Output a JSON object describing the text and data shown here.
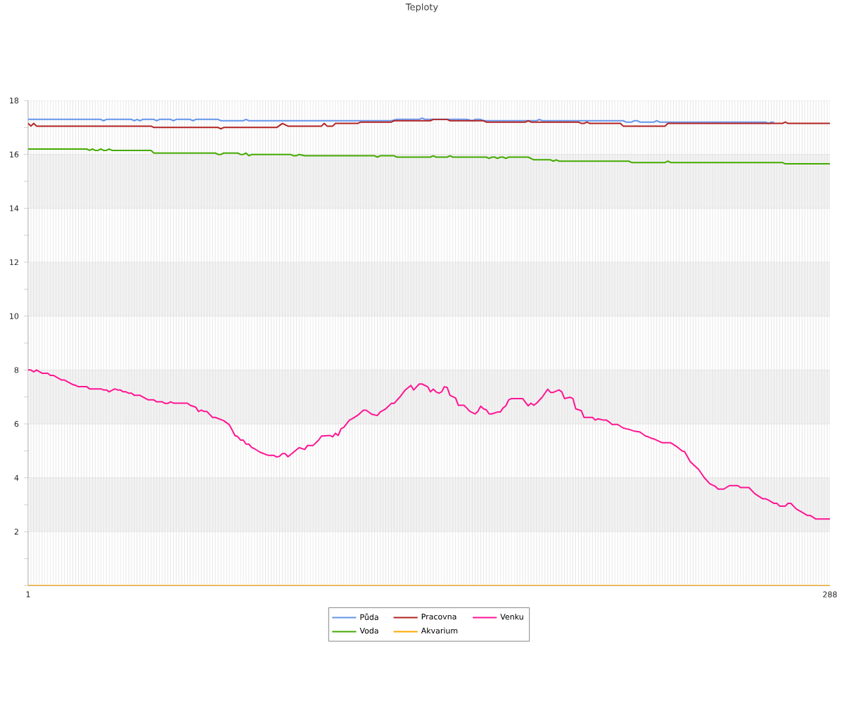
{
  "chart_data": {
    "type": "line",
    "title": "Teploty",
    "xlim": [
      1,
      288
    ],
    "xticks": [
      1,
      {
        "value": 2,
        "label": null
      },
      {
        "value": 3,
        "label": null
      },
      {
        "value": 4,
        "label": null
      },
      {
        "value": 5,
        "label": null
      },
      {
        "value": 6,
        "label": null
      },
      {
        "value": 7,
        "label": null
      },
      {
        "value": 8,
        "label": null
      },
      {
        "value": 9,
        "label": null
      },
      {
        "value": 10,
        "label": null
      },
      {
        "value": 11,
        "label": null
      },
      {
        "value": 12,
        "label": null
      },
      {
        "value": 13,
        "label": null
      },
      {
        "value": 14,
        "label": null
      },
      {
        "value": 15,
        "label": null
      },
      {
        "value": 16,
        "label": null
      },
      {
        "value": 17,
        "label": null
      },
      {
        "value": 18,
        "label": null
      },
      {
        "value": 19,
        "label": null
      },
      {
        "value": 20,
        "label": null
      },
      {
        "value": 21,
        "label": null
      },
      {
        "value": 22,
        "label": null
      },
      {
        "value": 23,
        "label": null
      },
      {
        "value": 24,
        "label": null
      },
      {
        "value": 25,
        "label": null
      },
      {
        "value": 26,
        "label": null
      },
      {
        "value": 27,
        "label": null
      },
      {
        "value": 28,
        "label": null
      },
      {
        "value": 29,
        "label": null
      },
      {
        "value": 30,
        "label": null
      },
      {
        "value": 31,
        "label": null
      },
      {
        "value": 32,
        "label": null
      },
      {
        "value": 33,
        "label": null
      },
      {
        "value": 34,
        "label": null
      },
      {
        "value": 35,
        "label": null
      },
      {
        "value": 36,
        "label": null
      },
      {
        "value": 37,
        "label": null
      },
      {
        "value": 38,
        "label": null
      },
      {
        "value": 39,
        "label": null
      },
      {
        "value": 40,
        "label": null
      },
      {
        "value": 41,
        "label": null
      },
      {
        "value": 42,
        "label": null
      },
      {
        "value": 43,
        "label": null
      },
      {
        "value": 44,
        "label": null
      },
      {
        "value": 45,
        "label": null
      },
      {
        "value": 46,
        "label": null
      },
      {
        "value": 47,
        "label": null
      },
      {
        "value": 48,
        "label": null
      },
      {
        "value": 49,
        "label": null
      },
      {
        "value": 50,
        "label": null
      },
      {
        "value": 51,
        "label": null
      },
      {
        "value": 52,
        "label": null
      },
      {
        "value": 53,
        "label": null
      },
      {
        "value": 54,
        "label": null
      },
      {
        "value": 55,
        "label": null
      },
      {
        "value": 56,
        "label": null
      },
      {
        "value": 57,
        "label": null
      },
      {
        "value": 58,
        "label": null
      },
      {
        "value": 59,
        "label": null
      },
      {
        "value": 60,
        "label": null
      },
      {
        "value": 61,
        "label": null
      },
      {
        "value": 62,
        "label": null
      },
      {
        "value": 63,
        "label": null
      },
      {
        "value": 64,
        "label": null
      },
      {
        "value": 65,
        "label": null
      },
      {
        "value": 66,
        "label": null
      },
      {
        "value": 67,
        "label": null
      },
      {
        "value": 68,
        "label": null
      },
      {
        "value": 69,
        "label": null
      },
      {
        "value": 70,
        "label": null
      },
      {
        "value": 71,
        "label": null
      },
      {
        "value": 72,
        "label": null
      },
      {
        "value": 73,
        "label": null
      },
      {
        "value": 74,
        "label": null
      },
      {
        "value": 75,
        "label": null
      },
      {
        "value": 76,
        "label": null
      },
      {
        "value": 77,
        "label": null
      },
      {
        "value": 78,
        "label": null
      },
      {
        "value": 79,
        "label": null
      },
      {
        "value": 80,
        "label": null
      },
      {
        "value": 81,
        "label": null
      },
      {
        "value": 82,
        "label": null
      },
      {
        "value": 83,
        "label": null
      },
      {
        "value": 84,
        "label": null
      },
      {
        "value": 85,
        "label": null
      },
      {
        "value": 86,
        "label": null
      },
      {
        "value": 87,
        "label": null
      },
      {
        "value": 88,
        "label": null
      },
      {
        "value": 89,
        "label": null
      },
      {
        "value": 90,
        "label": null
      },
      {
        "value": 91,
        "label": null
      },
      {
        "value": 92,
        "label": null
      },
      {
        "value": 93,
        "label": null
      },
      {
        "value": 94,
        "label": null
      },
      {
        "value": 95,
        "label": null
      },
      {
        "value": 96,
        "label": null
      },
      {
        "value": 97,
        "label": null
      },
      {
        "value": 98,
        "label": null
      },
      {
        "value": 99,
        "label": null
      },
      {
        "value": 100,
        "label": null
      },
      {
        "value": 101,
        "label": null
      },
      {
        "value": 102,
        "label": null
      },
      {
        "value": 103,
        "label": null
      },
      {
        "value": 104,
        "label": null
      },
      {
        "value": 105,
        "label": null
      },
      {
        "value": 106,
        "label": null
      },
      {
        "value": 107,
        "label": null
      },
      {
        "value": 108,
        "label": null
      },
      {
        "value": 109,
        "label": null
      },
      {
        "value": 110,
        "label": null
      },
      {
        "value": 111,
        "label": null
      },
      {
        "value": 112,
        "label": null
      },
      {
        "value": 113,
        "label": null
      },
      {
        "value": 114,
        "label": null
      },
      {
        "value": 115,
        "label": null
      },
      {
        "value": 116,
        "label": null
      },
      {
        "value": 117,
        "label": null
      },
      {
        "value": 118,
        "label": null
      },
      {
        "value": 119,
        "label": null
      },
      {
        "value": 120,
        "label": null
      },
      {
        "value": 121,
        "label": null
      },
      {
        "value": 122,
        "label": null
      },
      {
        "value": 123,
        "label": null
      },
      {
        "value": 124,
        "label": null
      },
      {
        "value": 125,
        "label": null
      },
      {
        "value": 126,
        "label": null
      },
      {
        "value": 127,
        "label": null
      },
      {
        "value": 128,
        "label": null
      },
      {
        "value": 129,
        "label": null
      },
      {
        "value": 130,
        "label": null
      },
      {
        "value": 131,
        "label": null
      },
      {
        "value": 132,
        "label": null
      },
      {
        "value": 133,
        "label": null
      },
      {
        "value": 134,
        "label": null
      },
      {
        "value": 135,
        "label": null
      },
      {
        "value": 136,
        "label": null
      },
      {
        "value": 137,
        "label": null
      },
      {
        "value": 138,
        "label": null
      },
      {
        "value": 139,
        "label": null
      },
      {
        "value": 140,
        "label": null
      },
      {
        "value": 141,
        "label": null
      },
      {
        "value": 142,
        "label": null
      },
      {
        "value": 143,
        "label": null
      },
      {
        "value": 144,
        "label": null
      },
      {
        "value": 145,
        "label": null
      },
      {
        "value": 146,
        "label": null
      },
      {
        "value": 147,
        "label": null
      },
      {
        "value": 148,
        "label": null
      },
      {
        "value": 149,
        "label": null
      },
      {
        "value": 150,
        "label": null
      },
      {
        "value": 151,
        "label": null
      },
      {
        "value": 152,
        "label": null
      },
      {
        "value": 153,
        "label": null
      },
      {
        "value": 154,
        "label": null
      },
      {
        "value": 155,
        "label": null
      },
      {
        "value": 156,
        "label": null
      },
      {
        "value": 157,
        "label": null
      },
      {
        "value": 158,
        "label": null
      },
      {
        "value": 159,
        "label": null
      },
      {
        "value": 160,
        "label": null
      },
      {
        "value": 161,
        "label": null
      },
      {
        "value": 162,
        "label": null
      },
      {
        "value": 163,
        "label": null
      },
      {
        "value": 164,
        "label": null
      },
      {
        "value": 165,
        "label": null
      },
      {
        "value": 166,
        "label": null
      },
      {
        "value": 167,
        "label": null
      },
      {
        "value": 168,
        "label": null
      },
      {
        "value": 169,
        "label": null
      },
      {
        "value": 170,
        "label": null
      },
      {
        "value": 171,
        "label": null
      },
      {
        "value": 172,
        "label": null
      },
      {
        "value": 173,
        "label": null
      },
      {
        "value": 174,
        "label": null
      },
      {
        "value": 175,
        "label": null
      },
      {
        "value": 176,
        "label": null
      },
      {
        "value": 177,
        "label": null
      },
      {
        "value": 178,
        "label": null
      },
      {
        "value": 179,
        "label": null
      },
      {
        "value": 180,
        "label": null
      },
      {
        "value": 181,
        "label": null
      },
      {
        "value": 182,
        "label": null
      },
      {
        "value": 183,
        "label": null
      },
      {
        "value": 184,
        "label": null
      },
      {
        "value": 185,
        "label": null
      },
      {
        "value": 186,
        "label": null
      },
      {
        "value": 187,
        "label": null
      },
      {
        "value": 188,
        "label": null
      },
      {
        "value": 189,
        "label": null
      },
      {
        "value": 190,
        "label": null
      },
      {
        "value": 191,
        "label": null
      },
      {
        "value": 192,
        "label": null
      },
      {
        "value": 193,
        "label": null
      },
      {
        "value": 194,
        "label": null
      },
      {
        "value": 195,
        "label": null
      },
      {
        "value": 196,
        "label": null
      },
      {
        "value": 197,
        "label": null
      },
      {
        "value": 198,
        "label": null
      },
      {
        "value": 199,
        "label": null
      },
      {
        "value": 200,
        "label": null
      },
      {
        "value": 201,
        "label": null
      },
      {
        "value": 202,
        "label": null
      },
      {
        "value": 203,
        "label": null
      },
      {
        "value": 204,
        "label": null
      },
      {
        "value": 205,
        "label": null
      },
      {
        "value": 206,
        "label": null
      },
      {
        "value": 207,
        "label": null
      },
      {
        "value": 208,
        "label": null
      },
      {
        "value": 209,
        "label": null
      },
      {
        "value": 210,
        "label": null
      },
      {
        "value": 211,
        "label": null
      },
      {
        "value": 212,
        "label": null
      },
      {
        "value": 213,
        "label": null
      },
      {
        "value": 214,
        "label": null
      },
      {
        "value": 215,
        "label": null
      },
      {
        "value": 216,
        "label": null
      },
      {
        "value": 217,
        "label": null
      },
      {
        "value": 218,
        "label": null
      },
      {
        "value": 219,
        "label": null
      },
      {
        "value": 220,
        "label": null
      },
      {
        "value": 221,
        "label": null
      },
      {
        "value": 222,
        "label": null
      },
      {
        "value": 223,
        "label": null
      },
      {
        "value": 224,
        "label": null
      },
      {
        "value": 225,
        "label": null
      },
      {
        "value": 226,
        "label": null
      },
      {
        "value": 227,
        "label": null
      },
      {
        "value": 228,
        "label": null
      },
      {
        "value": 229,
        "label": null
      },
      {
        "value": 230,
        "label": null
      },
      {
        "value": 231,
        "label": null
      },
      {
        "value": 232,
        "label": null
      },
      {
        "value": 233,
        "label": null
      },
      {
        "value": 234,
        "label": null
      },
      {
        "value": 235,
        "label": null
      },
      {
        "value": 236,
        "label": null
      },
      {
        "value": 237,
        "label": null
      },
      {
        "value": 238,
        "label": null
      },
      {
        "value": 239,
        "label": null
      },
      {
        "value": 240,
        "label": null
      },
      {
        "value": 241,
        "label": null
      },
      {
        "value": 242,
        "label": null
      },
      {
        "value": 243,
        "label": null
      },
      {
        "value": 244,
        "label": null
      },
      {
        "value": 245,
        "label": null
      },
      {
        "value": 246,
        "label": null
      },
      {
        "value": 247,
        "label": null
      },
      {
        "value": 248,
        "label": null
      },
      {
        "value": 249,
        "label": null
      },
      {
        "value": 250,
        "label": null
      },
      {
        "value": 251,
        "label": null
      },
      {
        "value": 252,
        "label": null
      },
      {
        "value": 253,
        "label": null
      },
      {
        "value": 254,
        "label": null
      },
      {
        "value": 255,
        "label": null
      },
      {
        "value": 256,
        "label": null
      },
      {
        "value": 257,
        "label": null
      },
      {
        "value": 258,
        "label": null
      },
      {
        "value": 259,
        "label": null
      },
      {
        "value": 260,
        "label": null
      },
      {
        "value": 261,
        "label": null
      },
      {
        "value": 262,
        "label": null
      },
      {
        "value": 263,
        "label": null
      },
      {
        "value": 264,
        "label": null
      },
      {
        "value": 265,
        "label": null
      },
      {
        "value": 266,
        "label": null
      },
      {
        "value": 267,
        "label": null
      },
      {
        "value": 268,
        "label": null
      },
      {
        "value": 269,
        "label": null
      },
      {
        "value": 270,
        "label": null
      },
      {
        "value": 271,
        "label": null
      },
      {
        "value": 272,
        "label": null
      },
      {
        "value": 273,
        "label": null
      },
      {
        "value": 274,
        "label": null
      },
      {
        "value": 275,
        "label": null
      },
      {
        "value": 276,
        "label": null
      },
      {
        "value": 277,
        "label": null
      },
      {
        "value": 278,
        "label": null
      },
      {
        "value": 279,
        "label": null
      },
      {
        "value": 280,
        "label": null
      },
      {
        "value": 281,
        "label": null
      },
      {
        "value": 282,
        "label": null
      },
      {
        "value": 283,
        "label": null
      },
      {
        "value": 284,
        "label": null
      },
      {
        "value": 285,
        "label": null
      },
      {
        "value": 286,
        "label": null
      },
      {
        "value": 287,
        "label": null
      },
      288
    ],
    "ylim": [
      0,
      18
    ],
    "yticks": [
      {
        "value": 0,
        "label": null
      },
      {
        "value": 1,
        "label": null
      },
      2,
      {
        "value": 3,
        "label": null
      },
      4,
      {
        "value": 5,
        "label": null
      },
      6,
      {
        "value": 7,
        "label": null
      },
      8,
      {
        "value": 9,
        "label": null
      },
      10,
      {
        "value": 11,
        "label": null
      },
      12,
      {
        "value": 13,
        "label": null
      },
      14,
      {
        "value": 15,
        "label": null
      },
      16,
      {
        "value": 17,
        "label": null
      },
      18
    ],
    "grid": true,
    "legend": "bottom",
    "line_style": "solid",
    "bands": [
      {
        "axis": "y",
        "from": 2,
        "to": 4,
        "color": "#f2f2f2"
      },
      {
        "axis": "y",
        "from": 6,
        "to": 8,
        "color": "#f2f2f2"
      },
      {
        "axis": "y",
        "from": 10,
        "to": 12,
        "color": "#f2f2f2"
      },
      {
        "axis": "y",
        "from": 14,
        "to": 16,
        "color": "#f2f2f2"
      }
    ],
    "series": [
      {
        "name": "Půda",
        "color": "#6495ed",
        "x": [
          1,
          27,
          28,
          29,
          38,
          39,
          40,
          41,
          42,
          46,
          47,
          48,
          52,
          53,
          54,
          55,
          59,
          60,
          61,
          69,
          70,
          78,
          79,
          80,
          131,
          133,
          141,
          142,
          143,
          158,
          160,
          161,
          163,
          164,
          183,
          184,
          185,
          214,
          215,
          217,
          218,
          219,
          220,
          225,
          226,
          227,
          265,
          266,
          267,
          268
        ],
        "values": [
          17.3,
          17.3,
          17.25,
          17.3,
          17.3,
          17.25,
          17.3,
          17.25,
          17.3,
          17.3,
          17.25,
          17.3,
          17.3,
          17.25,
          17.3,
          17.3,
          17.3,
          17.25,
          17.3,
          17.3,
          17.25,
          17.25,
          17.3,
          17.25,
          17.25,
          17.3,
          17.3,
          17.35,
          17.3,
          17.3,
          17.25,
          17.3,
          17.3,
          17.25,
          17.25,
          17.3,
          17.25,
          17.25,
          17.2,
          17.2,
          17.25,
          17.25,
          17.2,
          17.2,
          17.25,
          17.2,
          17.2,
          17.15,
          17.2,
          17.2
        ]
      },
      {
        "name": "Pracovna",
        "color": "#b22222",
        "x": [
          1,
          2,
          3,
          4,
          45,
          46,
          69,
          70,
          71,
          90,
          92,
          94,
          106,
          107,
          108,
          110,
          111,
          119,
          120,
          131,
          132,
          145,
          146,
          151,
          152,
          164,
          165,
          179,
          180,
          181,
          198,
          199,
          200,
          201,
          202,
          213,
          214,
          229,
          230,
          271,
          272,
          273,
          288
        ],
        "values": [
          17.15,
          17.05,
          17.15,
          17.05,
          17.05,
          17.0,
          17.0,
          16.95,
          17.0,
          17.0,
          17.15,
          17.05,
          17.05,
          17.15,
          17.05,
          17.05,
          17.15,
          17.15,
          17.2,
          17.2,
          17.25,
          17.25,
          17.3,
          17.3,
          17.25,
          17.25,
          17.2,
          17.2,
          17.25,
          17.2,
          17.2,
          17.15,
          17.15,
          17.2,
          17.15,
          17.15,
          17.05,
          17.05,
          17.15,
          17.15,
          17.2,
          17.15,
          17.15
        ]
      },
      {
        "name": "Venku",
        "color": "#ff1493",
        "x": [
          1,
          2,
          3,
          4,
          6,
          8,
          9,
          10,
          13,
          14,
          17,
          18,
          19,
          22,
          23,
          27,
          28,
          29,
          30,
          32,
          33,
          34,
          35,
          36,
          37,
          38,
          39,
          41,
          44,
          46,
          47,
          49,
          50,
          51,
          52,
          53,
          58,
          59,
          61,
          62,
          63,
          64,
          65,
          67,
          68,
          71,
          73,
          74,
          75,
          76,
          77,
          78,
          79,
          80,
          81,
          82,
          84,
          87,
          89,
          90,
          91,
          92,
          93,
          94,
          96,
          98,
          100,
          101,
          103,
          105,
          106,
          109,
          110,
          111,
          112,
          113,
          114,
          116,
          117,
          119,
          121,
          122,
          124,
          126,
          127,
          129,
          131,
          132,
          134,
          136,
          138,
          139,
          141,
          142,
          144,
          145,
          146,
          147,
          148,
          149,
          150,
          151,
          152,
          154,
          155,
          157,
          158,
          159,
          161,
          162,
          163,
          164,
          165,
          166,
          167,
          169,
          170,
          171,
          172,
          173,
          174,
          178,
          180,
          181,
          182,
          183,
          185,
          187,
          188,
          189,
          191,
          192,
          193,
          195,
          196,
          197,
          199,
          200,
          203,
          204,
          205,
          207,
          208,
          209,
          210,
          212,
          214,
          215,
          216,
          218,
          220,
          222,
          223,
          224,
          225,
          228,
          231,
          233,
          235,
          236,
          238,
          241,
          243,
          245,
          247,
          248,
          250,
          252,
          255,
          256,
          259,
          261,
          262,
          264,
          265,
          266,
          268,
          269,
          270,
          272,
          273,
          274,
          276,
          278,
          280,
          281,
          283,
          288
        ],
        "values": [
          8.0,
          8.0,
          7.93,
          8.0,
          7.88,
          7.88,
          7.8,
          7.8,
          7.63,
          7.63,
          7.46,
          7.43,
          7.38,
          7.38,
          7.3,
          7.3,
          7.26,
          7.26,
          7.19,
          7.3,
          7.26,
          7.26,
          7.19,
          7.19,
          7.14,
          7.14,
          7.06,
          7.06,
          6.89,
          6.89,
          6.82,
          6.82,
          6.76,
          6.76,
          6.82,
          6.77,
          6.77,
          6.69,
          6.62,
          6.46,
          6.51,
          6.46,
          6.46,
          6.24,
          6.24,
          6.12,
          5.97,
          5.78,
          5.57,
          5.53,
          5.4,
          5.4,
          5.25,
          5.25,
          5.13,
          5.08,
          4.95,
          4.83,
          4.83,
          4.77,
          4.8,
          4.9,
          4.9,
          4.78,
          4.95,
          5.12,
          5.05,
          5.2,
          5.2,
          5.4,
          5.55,
          5.57,
          5.52,
          5.65,
          5.57,
          5.82,
          5.87,
          6.14,
          6.19,
          6.32,
          6.51,
          6.51,
          6.36,
          6.31,
          6.44,
          6.56,
          6.76,
          6.76,
          6.99,
          7.26,
          7.43,
          7.26,
          7.48,
          7.48,
          7.38,
          7.19,
          7.29,
          7.19,
          7.14,
          7.19,
          7.38,
          7.35,
          7.06,
          6.96,
          6.69,
          6.69,
          6.59,
          6.47,
          6.37,
          6.47,
          6.66,
          6.56,
          6.52,
          6.37,
          6.37,
          6.44,
          6.44,
          6.59,
          6.67,
          6.89,
          6.94,
          6.94,
          6.67,
          6.77,
          6.69,
          6.77,
          6.99,
          7.29,
          7.17,
          7.17,
          7.26,
          7.19,
          6.94,
          6.99,
          6.94,
          6.56,
          6.49,
          6.24,
          6.24,
          6.14,
          6.19,
          6.14,
          6.14,
          6.07,
          5.98,
          5.98,
          5.85,
          5.82,
          5.8,
          5.73,
          5.7,
          5.55,
          5.52,
          5.47,
          5.44,
          5.3,
          5.3,
          5.17,
          5.0,
          4.97,
          4.6,
          4.31,
          4.01,
          3.78,
          3.68,
          3.58,
          3.58,
          3.71,
          3.71,
          3.64,
          3.64,
          3.42,
          3.35,
          3.22,
          3.22,
          3.17,
          3.05,
          3.05,
          2.95,
          2.95,
          3.05,
          3.05,
          2.84,
          2.72,
          2.6,
          2.6,
          2.47,
          2.47
        ]
      },
      {
        "name": "Voda",
        "color": "#44aa00",
        "x": [
          1,
          22,
          23,
          24,
          25,
          26,
          27,
          28,
          29,
          30,
          31,
          45,
          46,
          68,
          69,
          70,
          71,
          76,
          77,
          78,
          79,
          80,
          81,
          95,
          96,
          97,
          98,
          100,
          125,
          126,
          127,
          132,
          133,
          145,
          146,
          147,
          151,
          152,
          153,
          165,
          166,
          167,
          168,
          169,
          170,
          171,
          172,
          173,
          180,
          182,
          183,
          188,
          189,
          190,
          191,
          216,
          217,
          229,
          230,
          231,
          271,
          272,
          288
        ],
        "values": [
          16.2,
          16.2,
          16.15,
          16.2,
          16.15,
          16.15,
          16.2,
          16.15,
          16.15,
          16.2,
          16.15,
          16.15,
          16.05,
          16.05,
          16.0,
          16.0,
          16.05,
          16.05,
          16.0,
          16.0,
          16.05,
          15.95,
          16.0,
          16.0,
          15.95,
          15.95,
          16.0,
          15.95,
          15.95,
          15.9,
          15.95,
          15.95,
          15.9,
          15.9,
          15.95,
          15.9,
          15.9,
          15.95,
          15.9,
          15.9,
          15.85,
          15.9,
          15.9,
          15.85,
          15.9,
          15.9,
          15.85,
          15.9,
          15.9,
          15.8,
          15.8,
          15.8,
          15.75,
          15.8,
          15.75,
          15.75,
          15.7,
          15.7,
          15.75,
          15.7,
          15.7,
          15.65,
          15.65
        ]
      },
      {
        "name": "Akvarium",
        "color": "#ffa500",
        "x": [
          1,
          288
        ],
        "values": [
          0,
          0
        ]
      }
    ]
  }
}
